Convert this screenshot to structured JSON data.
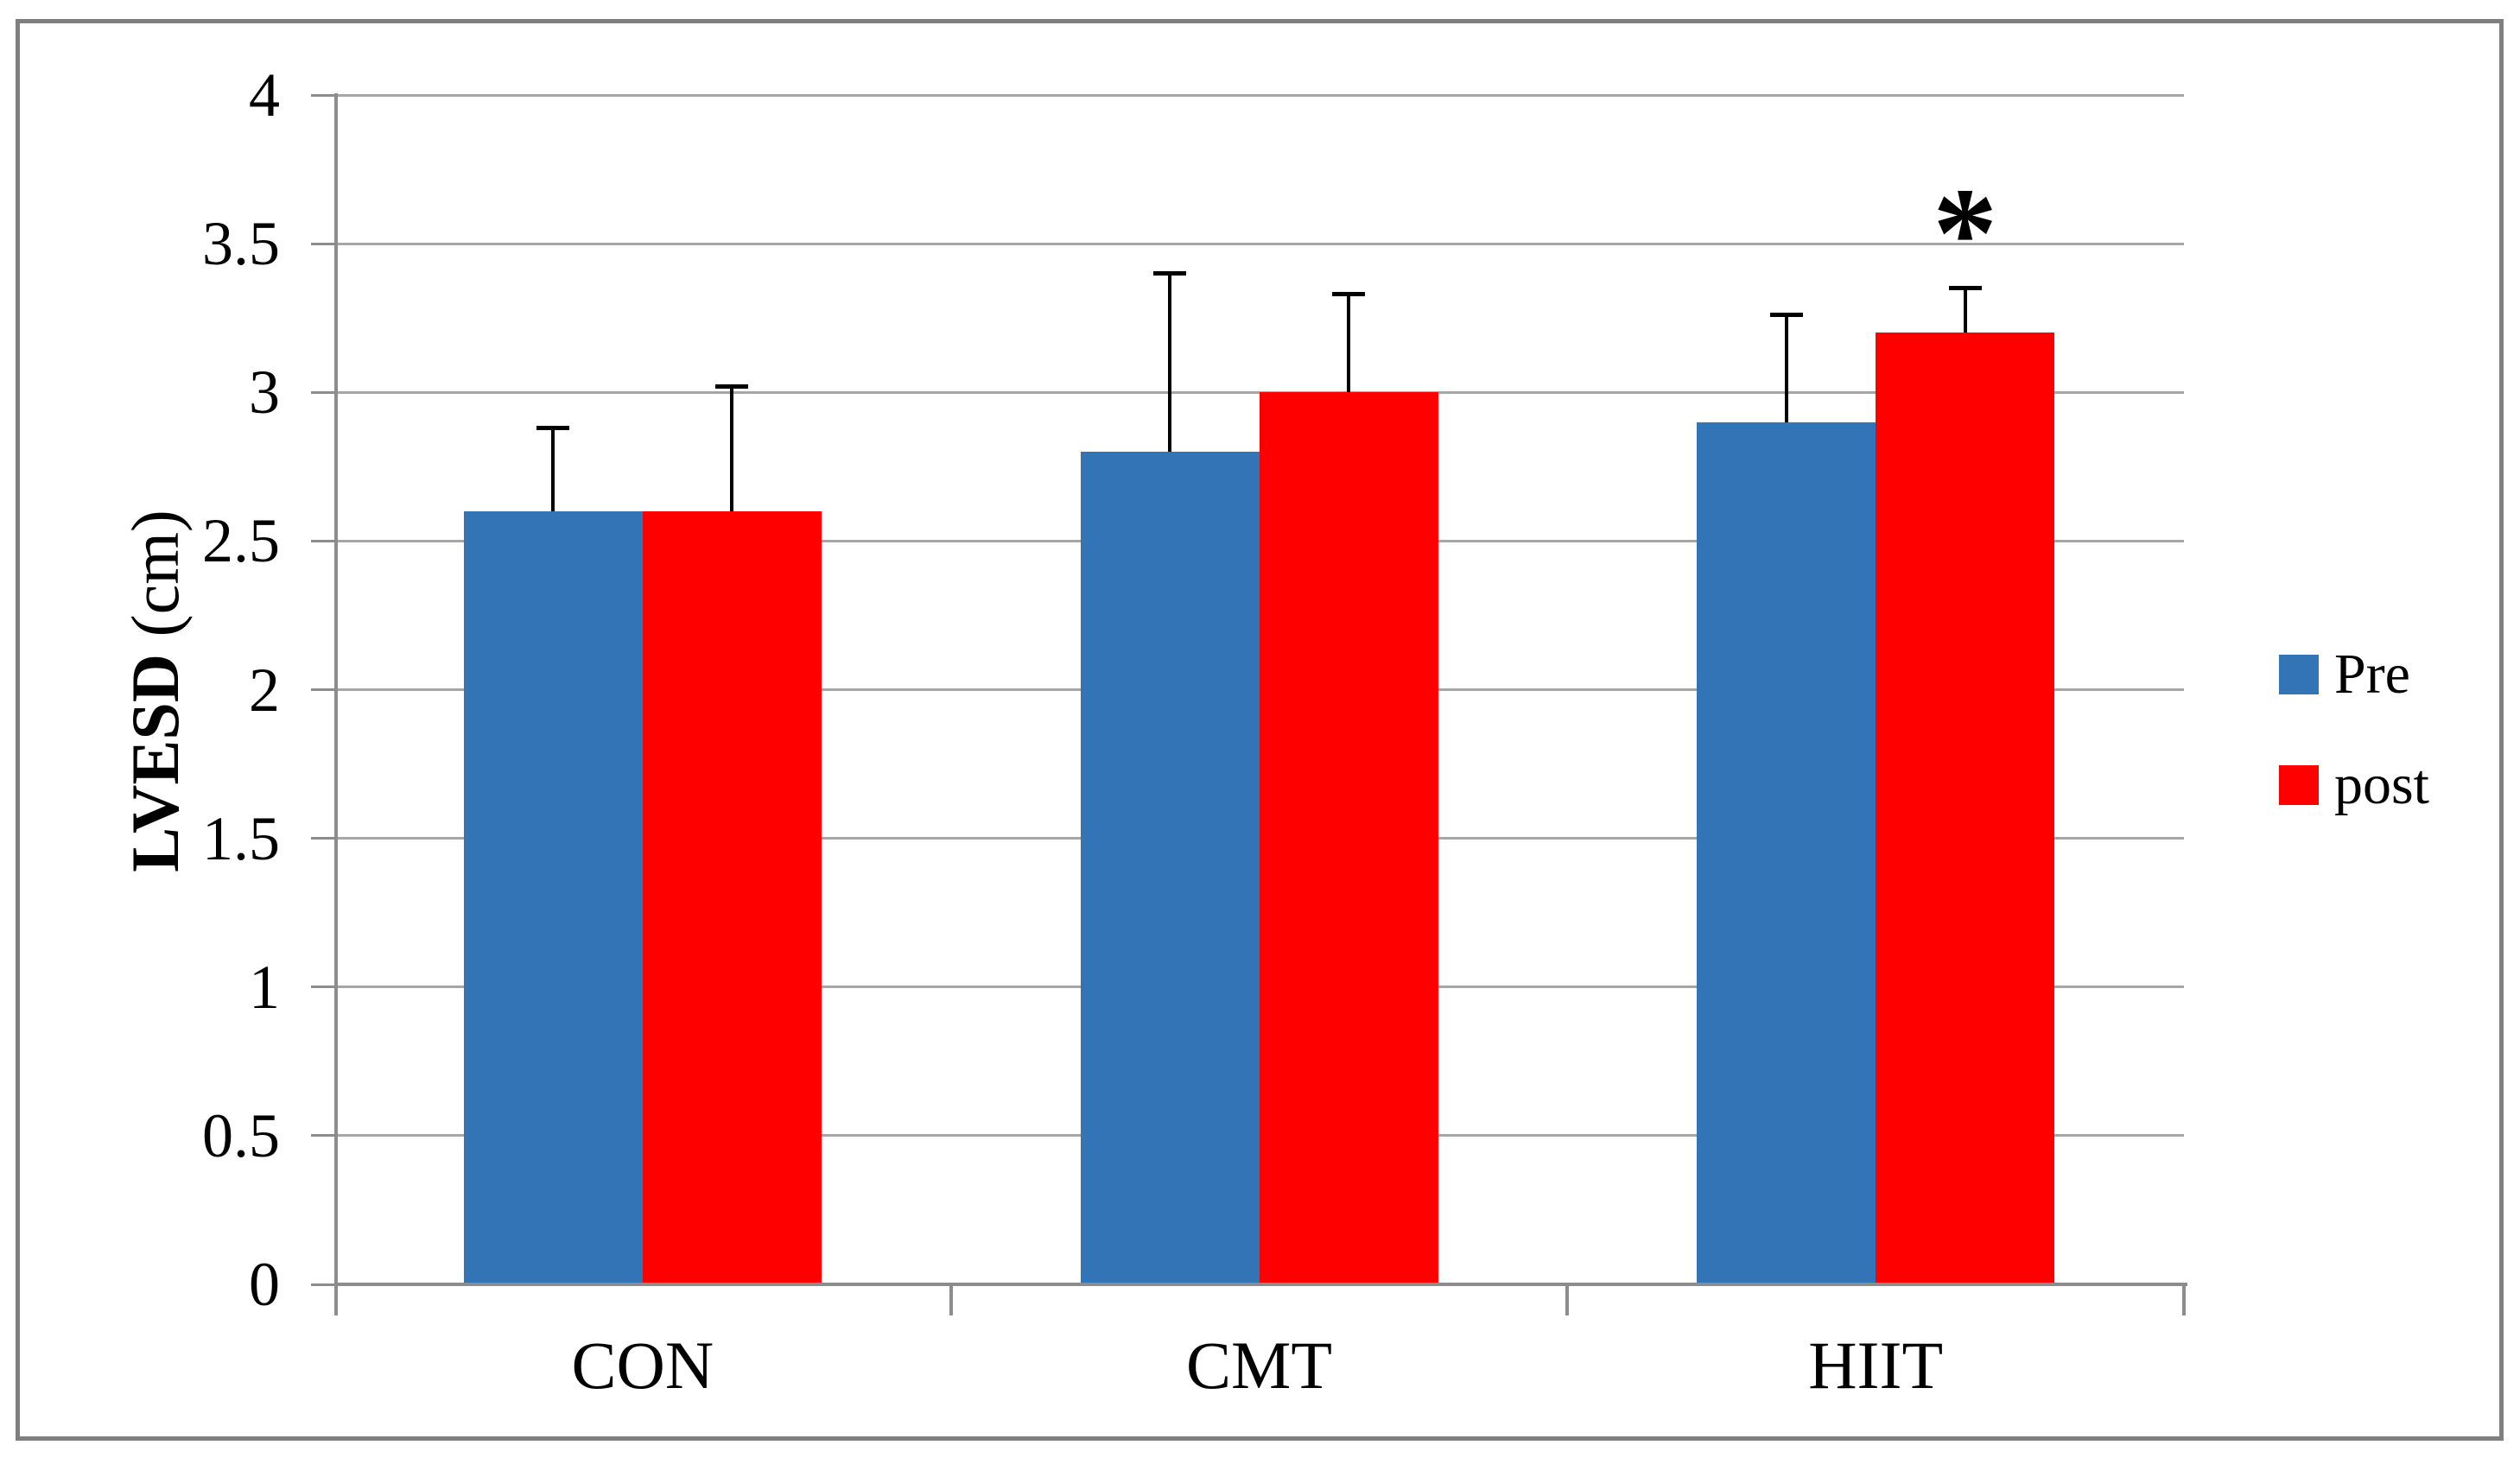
{
  "figure": {
    "background": "#ffffff",
    "border_color": "#7f7f7f"
  },
  "chart_data": {
    "type": "bar",
    "title": "",
    "ylabel_bold": "LVESD",
    "ylabel_unit": " (cm)",
    "xlabel": "",
    "categories": [
      "CON",
      "CMT",
      "HIIT"
    ],
    "series": [
      {
        "name": "Pre",
        "color": "#3274b5",
        "values": [
          2.6,
          2.8,
          2.9
        ],
        "error_plus": [
          0.28,
          0.6,
          0.36
        ]
      },
      {
        "name": "post",
        "color": "#ff0000",
        "values": [
          2.6,
          3.0,
          3.2
        ],
        "error_plus": [
          0.42,
          0.33,
          0.15
        ]
      }
    ],
    "ylim": [
      0,
      4
    ],
    "ytick_step": 0.5,
    "yticks": [
      "0",
      "0.5",
      "1",
      "1.5",
      "2",
      "2.5",
      "3",
      "3.5",
      "4"
    ],
    "grid": true,
    "grid_color": "#a6a6a6",
    "axis_color": "#8c8c8c",
    "error_bar_color": "#000000",
    "legend_position": "right",
    "annotation": {
      "text": "*",
      "category": "HIIT",
      "series": "post",
      "value_y": 3.6
    }
  }
}
